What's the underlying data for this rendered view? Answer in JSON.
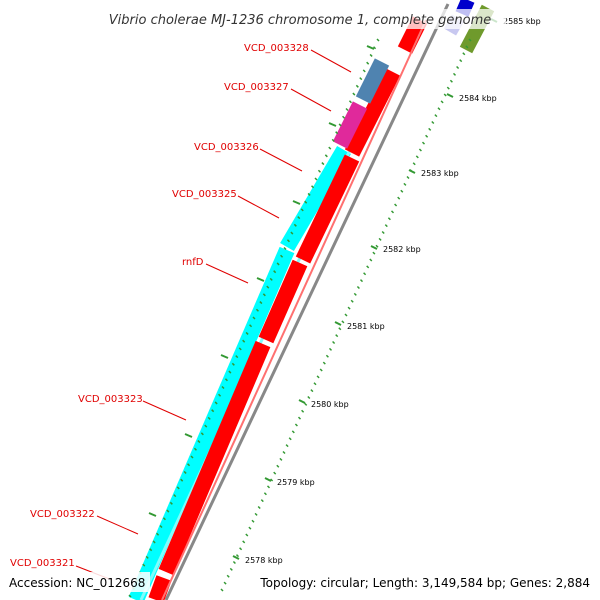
{
  "map": {
    "title": "Vibrio cholerae MJ-1236 chromosome 1, complete genome",
    "accession": "Accession: NC_012668",
    "summary": "Topology: circular; Length: 3,149,584 bp; Genes: 2,884",
    "colors": {
      "forward_strand": "#00ffff",
      "reverse_strand": "#ff0000",
      "backbone": "#888888",
      "tick": "#339933",
      "label": "#e00000",
      "leader_line": "#e00000",
      "gene_magenta": "#e0299b",
      "gene_steelblue": "#4f83b0",
      "gene_blue": "#0000cc",
      "gene_olive": "#6f9a2c"
    },
    "gene_labels": [
      "VCD_003328",
      "VCD_003327",
      "VCD_003326",
      "VCD_003325",
      "rnfD",
      "VCD_003323",
      "VCD_003322",
      "VCD_003321"
    ],
    "kbp_labels": [
      "2585 kbp",
      "2584 kbp",
      "2583 kbp",
      "2582 kbp",
      "2581 kbp",
      "2580 kbp",
      "2579 kbp",
      "2578 kbp"
    ]
  }
}
